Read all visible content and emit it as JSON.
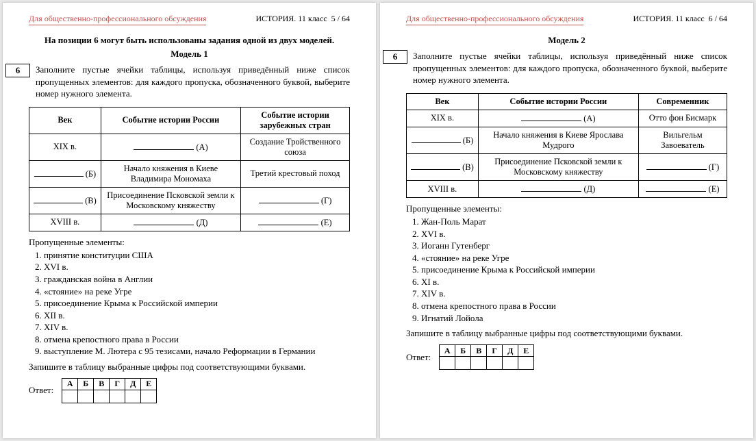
{
  "common": {
    "disclaimer": "Для общественно-профессионального обсуждения",
    "subject": "ИСТОРИЯ. 11 класс",
    "list_title": "Пропущенные элементы:",
    "instruction": "Запишите в таблицу выбранные цифры под соответствующими буквами.",
    "answer_label": "Ответ:",
    "letters": [
      "А",
      "Б",
      "В",
      "Г",
      "Д",
      "Е"
    ]
  },
  "left": {
    "page_num": "5 / 64",
    "intro": "На позиции 6 могут быть использованы задания одной из двух моделей.",
    "model": "Модель 1",
    "qnum": "6",
    "task": "Заполните пустые ячейки таблицы, используя приведённый ниже список пропущенных элементов: для каждого пропуска, обозначенного буквой, выберите номер нужного элемента.",
    "table": {
      "headers": [
        "Век",
        "Событие истории России",
        "Событие истории зарубежных стран"
      ],
      "rows": [
        {
          "c1": {
            "text": "XIX в."
          },
          "c2": {
            "blank": "(А)"
          },
          "c3": {
            "text": "Создание Тройственного союза"
          }
        },
        {
          "c1": {
            "blank": "(Б)"
          },
          "c2": {
            "text": "Начало княжения в Киеве Владимира Мономаха"
          },
          "c3": {
            "text": "Третий крестовый поход"
          }
        },
        {
          "c1": {
            "blank": "(В)"
          },
          "c2": {
            "text": "Присоединение Псковской земли к Московскому княжеству"
          },
          "c3": {
            "blank": "(Г)"
          }
        },
        {
          "c1": {
            "text": "XVIII в."
          },
          "c2": {
            "blank": "(Д)"
          },
          "c3": {
            "blank": "(Е)"
          }
        }
      ]
    },
    "elements": [
      "принятие конституции США",
      "XVI в.",
      "гражданская война в Англии",
      "«стояние» на реке Угре",
      "присоединение Крыма к Российской империи",
      "XII в.",
      "XIV в.",
      "отмена крепостного права в России",
      "выступление М. Лютера с 95 тезисами, начало Реформации в Германии"
    ]
  },
  "right": {
    "page_num": "6 / 64",
    "model": "Модель 2",
    "qnum": "6",
    "task": "Заполните пустые ячейки таблицы, используя приведённый ниже список пропущенных элементов: для каждого пропуска, обозначенного буквой, выберите номер нужного элемента.",
    "table": {
      "headers": [
        "Век",
        "Событие истории России",
        "Современник"
      ],
      "rows": [
        {
          "c1": {
            "text": "XIX в."
          },
          "c2": {
            "blank": "(А)"
          },
          "c3": {
            "text": "Отто фон Бисмарк"
          }
        },
        {
          "c1": {
            "blank": "(Б)"
          },
          "c2": {
            "text": "Начало княжения в Киеве Ярослава Мудрого"
          },
          "c3": {
            "text": "Вильгельм Завоеватель"
          }
        },
        {
          "c1": {
            "blank": "(В)"
          },
          "c2": {
            "text": "Присоединение Псковской земли к Московскому княжеству"
          },
          "c3": {
            "blank": "(Г)"
          }
        },
        {
          "c1": {
            "text": "XVIII в."
          },
          "c2": {
            "blank": "(Д)"
          },
          "c3": {
            "blank": "(Е)"
          }
        }
      ]
    },
    "elements": [
      "Жан-Поль Марат",
      "XVI в.",
      "Иоганн Гутенберг",
      "«стояние» на реке Угре",
      "присоединение Крыма к Российской империи",
      "XI в.",
      "XIV в.",
      "отмена крепостного права в России",
      "Игнатий Лойола"
    ]
  }
}
